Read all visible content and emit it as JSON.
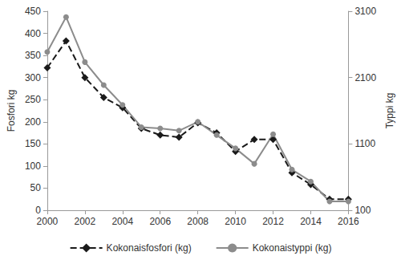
{
  "chart_data": {
    "type": "line",
    "x": [
      2000,
      2001,
      2002,
      2003,
      2004,
      2005,
      2006,
      2007,
      2008,
      2009,
      2010,
      2011,
      2012,
      2013,
      2014,
      2015,
      2016
    ],
    "xlim": [
      2000,
      2016
    ],
    "xticks": [
      2000,
      2002,
      2004,
      2006,
      2008,
      2010,
      2012,
      2014,
      2016
    ],
    "y_label": "Fosfori kg",
    "y2_label": "Typpi kg",
    "ylim": [
      0,
      450
    ],
    "yticks": [
      0,
      50,
      100,
      150,
      200,
      250,
      300,
      350,
      400,
      450
    ],
    "y2lim": [
      100,
      3100
    ],
    "y2ticks": [
      100,
      1100,
      2100,
      3100
    ],
    "grid": false,
    "legend": "bottom",
    "series": [
      {
        "name": "Kokonaisfosfori (kg)",
        "color": "#1a1a1a",
        "marker": "diamond",
        "line_style": "dashed",
        "values": [
          322,
          383,
          300,
          255,
          232,
          185,
          170,
          165,
          198,
          175,
          133,
          160,
          160,
          85,
          58,
          25,
          25
        ]
      },
      {
        "name": "Kokonaistyppi (kg)",
        "color": "#8c8c8c",
        "marker": "circle",
        "line_style": "solid",
        "axis": "y2",
        "values": [
          2487,
          3013,
          2333,
          1987,
          1687,
          1353,
          1333,
          1300,
          1433,
          1233,
          1033,
          800,
          1247,
          713,
          533,
          233,
          233
        ]
      }
    ]
  }
}
